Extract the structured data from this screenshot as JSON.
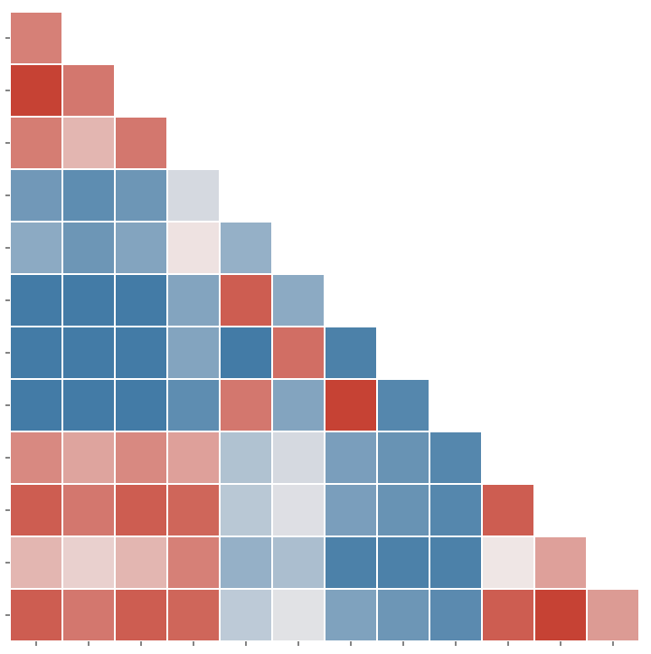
{
  "chart_data": {
    "type": "heatmap",
    "shape": "lower-triangle",
    "title": "",
    "xlabel": "",
    "ylabel": "",
    "x_tick_labels": [],
    "y_tick_labels": [],
    "colormap": {
      "kind": "diverging",
      "negative_color": "#3a75a2",
      "neutral_color": "#f0ebeb",
      "positive_color": "#c4392a",
      "vmin": -1,
      "vmax": 1
    },
    "rows": [
      [
        0.6
      ],
      [
        0.95,
        0.65
      ],
      [
        0.62,
        0.3,
        0.65
      ],
      [
        -0.7,
        -0.8,
        -0.72,
        -0.15
      ],
      [
        -0.55,
        -0.72,
        -0.6,
        0.05,
        -0.5
      ],
      [
        -0.95,
        -0.95,
        -0.95,
        -0.6,
        0.8,
        -0.55
      ],
      [
        -0.95,
        -0.95,
        -0.95,
        -0.6,
        -0.95,
        0.7,
        -0.9
      ],
      [
        -0.95,
        -0.95,
        -0.95,
        -0.8,
        0.65,
        -0.6,
        0.95,
        -0.85
      ],
      [
        0.55,
        0.4,
        0.55,
        0.42,
        -0.35,
        -0.15,
        -0.65,
        -0.75,
        -0.85
      ],
      [
        0.8,
        0.65,
        0.8,
        0.75,
        -0.3,
        -0.1,
        -0.65,
        -0.75,
        -0.85,
        0.8
      ],
      [
        0.3,
        0.15,
        0.3,
        0.6,
        -0.5,
        -0.38,
        -0.9,
        -0.9,
        -0.9,
        0.03,
        0.42
      ],
      [
        0.8,
        0.65,
        0.8,
        0.75,
        -0.28,
        -0.08,
        -0.62,
        -0.72,
        -0.82,
        0.8,
        0.95,
        0.45
      ]
    ]
  }
}
